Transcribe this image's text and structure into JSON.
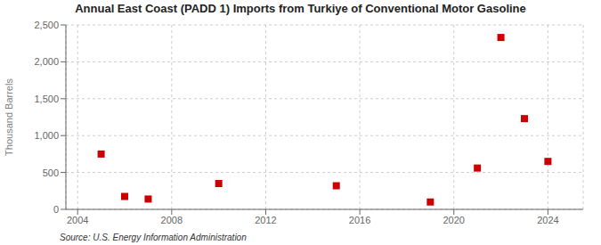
{
  "chart_data": {
    "type": "scatter",
    "title": "Annual East Coast (PADD 1) Imports from Turkiye of Conventional Motor Gasoline",
    "ylabel": "Thousand Barrels",
    "annotations": [
      "Source: U.S. Energy Information Administration"
    ],
    "x": [
      2005,
      2006,
      2007,
      2010,
      2015,
      2019,
      2021,
      2022,
      2023,
      2024
    ],
    "values": [
      750,
      175,
      140,
      350,
      320,
      100,
      560,
      2330,
      1230,
      650
    ],
    "color": "#cc0000",
    "marker": "square",
    "xlim": [
      2003.5,
      2025.5
    ],
    "xticks": [
      2004,
      2008,
      2012,
      2016,
      2020,
      2024
    ],
    "ylim": [
      0,
      2500
    ],
    "yticks": [
      0,
      500,
      {
        "value": 1000,
        "label": "1,000"
      },
      {
        "value": 1500,
        "label": "1,500"
      },
      {
        "value": 2000,
        "label": "2,000"
      },
      {
        "value": 2500,
        "label": "2,500"
      }
    ],
    "grid": true
  }
}
